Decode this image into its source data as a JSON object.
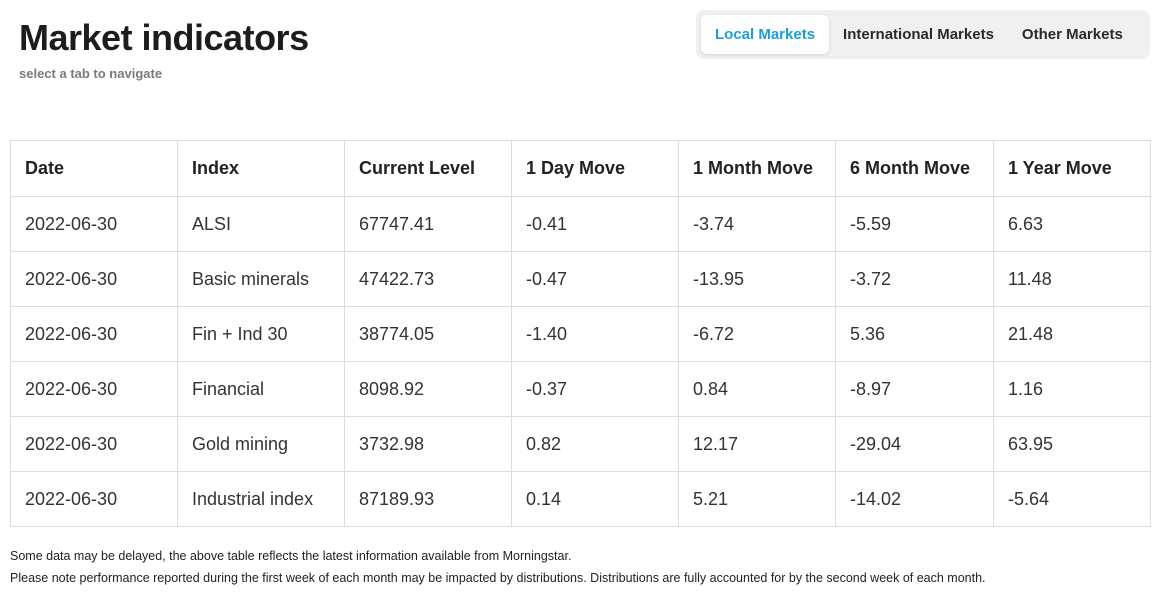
{
  "header": {
    "title": "Market indicators",
    "subtitle": "select a tab to navigate"
  },
  "tabs": [
    {
      "label": "Local Markets",
      "active": true
    },
    {
      "label": "International Markets",
      "active": false
    },
    {
      "label": "Other Markets",
      "active": false
    }
  ],
  "colors": {
    "accent": "#1a9fd6",
    "tab_bar_bg": "#f0f0f0",
    "border": "#dddddd"
  },
  "table": {
    "columns": [
      "Date",
      "Index",
      "Current Level",
      "1 Day Move",
      "1 Month Move",
      "6 Month Move",
      "1 Year Move"
    ],
    "rows": [
      [
        "2022-06-30",
        "ALSI",
        "67747.41",
        "-0.41",
        "-3.74",
        "-5.59",
        "6.63"
      ],
      [
        "2022-06-30",
        "Basic minerals",
        "47422.73",
        "-0.47",
        "-13.95",
        "-3.72",
        "11.48"
      ],
      [
        "2022-06-30",
        "Fin + Ind 30",
        "38774.05",
        "-1.40",
        "-6.72",
        "5.36",
        "21.48"
      ],
      [
        "2022-06-30",
        "Financial",
        "8098.92",
        "-0.37",
        "0.84",
        "-8.97",
        "1.16"
      ],
      [
        "2022-06-30",
        "Gold mining",
        "3732.98",
        "0.82",
        "12.17",
        "-29.04",
        "63.95"
      ],
      [
        "2022-06-30",
        "Industrial index",
        "87189.93",
        "0.14",
        "5.21",
        "-14.02",
        "-5.64"
      ]
    ]
  },
  "footnotes": [
    "Some data may be delayed, the above table reflects the latest information available from Morningstar.",
    "Please note performance reported during the first week of each month may be impacted by distributions. Distributions are fully accounted for by the second week of each month."
  ]
}
